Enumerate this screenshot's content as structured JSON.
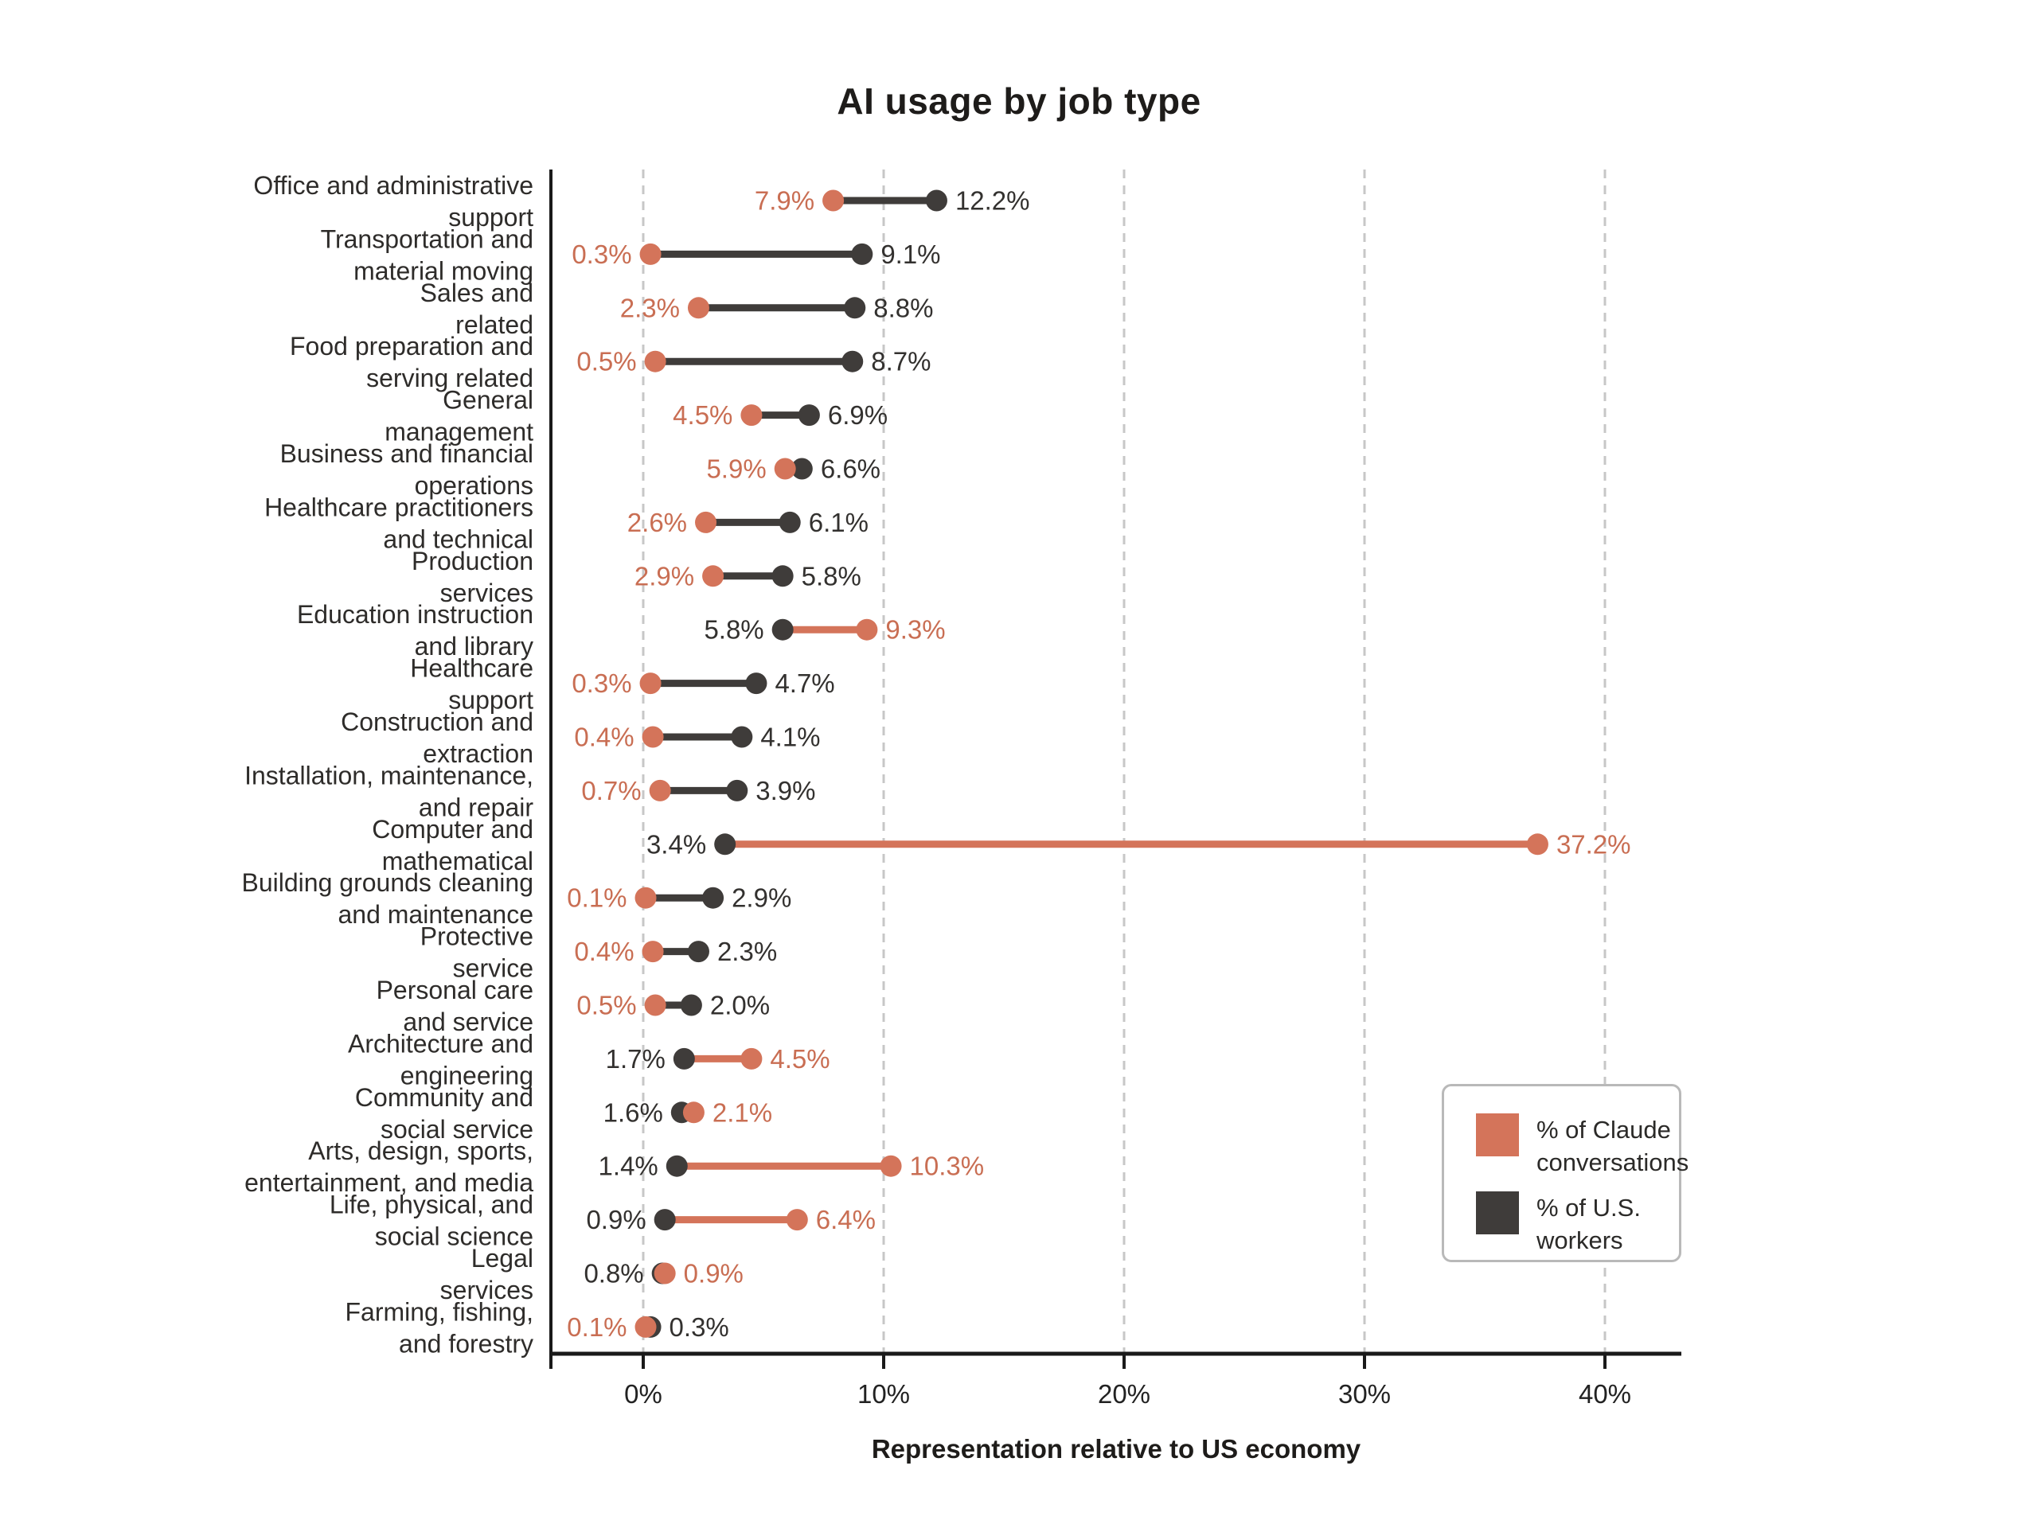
{
  "title": "AI usage by job type",
  "xlabel": "Representation relative to US economy",
  "legend": {
    "claude_label": "% of Claude conversations",
    "workers_label": "% of U.S. workers"
  },
  "colors": {
    "claude": "#D4745A",
    "claude_text": "#C96E53",
    "workers": "#3F3C3A",
    "workers_text": "#33312F",
    "grid": "#C7C7C7",
    "axis": "#1A1A1A",
    "row_label": "#2E2C2A",
    "tick_label": "#222222"
  },
  "chart_data": {
    "type": "dumbbell",
    "xlabel": "Representation relative to US economy",
    "x_ticks": [
      "0%",
      "10%",
      "20%",
      "30%",
      "40%"
    ],
    "x_tick_values": [
      0,
      10,
      20,
      30,
      40
    ],
    "xlim": [
      -3.8,
      43.2
    ],
    "grid": "dashed-vertical",
    "legend_position": "lower-right",
    "series": [
      {
        "name": "% of Claude conversations",
        "key": "claude",
        "color": "#D4745A"
      },
      {
        "name": "% of U.S. workers",
        "key": "workers",
        "color": "#3F3C3A"
      }
    ],
    "value_format": "percent-one-decimal",
    "rows": [
      {
        "label_lines": [
          "Office and administrative",
          "support"
        ],
        "claude": 7.9,
        "workers": 12.2
      },
      {
        "label_lines": [
          "Transportation and",
          "material moving"
        ],
        "claude": 0.3,
        "workers": 9.1
      },
      {
        "label_lines": [
          "Sales and",
          "related"
        ],
        "claude": 2.3,
        "workers": 8.8
      },
      {
        "label_lines": [
          "Food preparation and",
          "serving related"
        ],
        "claude": 0.5,
        "workers": 8.7
      },
      {
        "label_lines": [
          "General",
          "management"
        ],
        "claude": 4.5,
        "workers": 6.9
      },
      {
        "label_lines": [
          "Business and financial",
          "operations"
        ],
        "claude": 5.9,
        "workers": 6.6
      },
      {
        "label_lines": [
          "Healthcare practitioners",
          "and technical"
        ],
        "claude": 2.6,
        "workers": 6.1
      },
      {
        "label_lines": [
          "Production",
          "services"
        ],
        "claude": 2.9,
        "workers": 5.8
      },
      {
        "label_lines": [
          "Education instruction",
          "and library"
        ],
        "claude": 9.3,
        "workers": 5.8
      },
      {
        "label_lines": [
          "Healthcare",
          "support"
        ],
        "claude": 0.3,
        "workers": 4.7
      },
      {
        "label_lines": [
          "Construction and",
          "extraction"
        ],
        "claude": 0.4,
        "workers": 4.1
      },
      {
        "label_lines": [
          "Installation, maintenance,",
          "and repair"
        ],
        "claude": 0.7,
        "workers": 3.9
      },
      {
        "label_lines": [
          "Computer and",
          "mathematical"
        ],
        "claude": 37.2,
        "workers": 3.4
      },
      {
        "label_lines": [
          "Building grounds cleaning",
          "and maintenance"
        ],
        "claude": 0.1,
        "workers": 2.9
      },
      {
        "label_lines": [
          "Protective",
          "service"
        ],
        "claude": 0.4,
        "workers": 2.3
      },
      {
        "label_lines": [
          "Personal care",
          "and service"
        ],
        "claude": 0.5,
        "workers": 2.0
      },
      {
        "label_lines": [
          "Architecture and",
          "engineering"
        ],
        "claude": 4.5,
        "workers": 1.7
      },
      {
        "label_lines": [
          "Community and",
          "social service"
        ],
        "claude": 2.1,
        "workers": 1.6
      },
      {
        "label_lines": [
          "Arts, design, sports,",
          "entertainment, and media"
        ],
        "claude": 10.3,
        "workers": 1.4
      },
      {
        "label_lines": [
          "Life, physical, and",
          "social science"
        ],
        "claude": 6.4,
        "workers": 0.9
      },
      {
        "label_lines": [
          "Legal",
          "services"
        ],
        "claude": 0.9,
        "workers": 0.8
      },
      {
        "label_lines": [
          "Farming, fishing,",
          "and forestry"
        ],
        "claude": 0.1,
        "workers": 0.3
      }
    ]
  }
}
